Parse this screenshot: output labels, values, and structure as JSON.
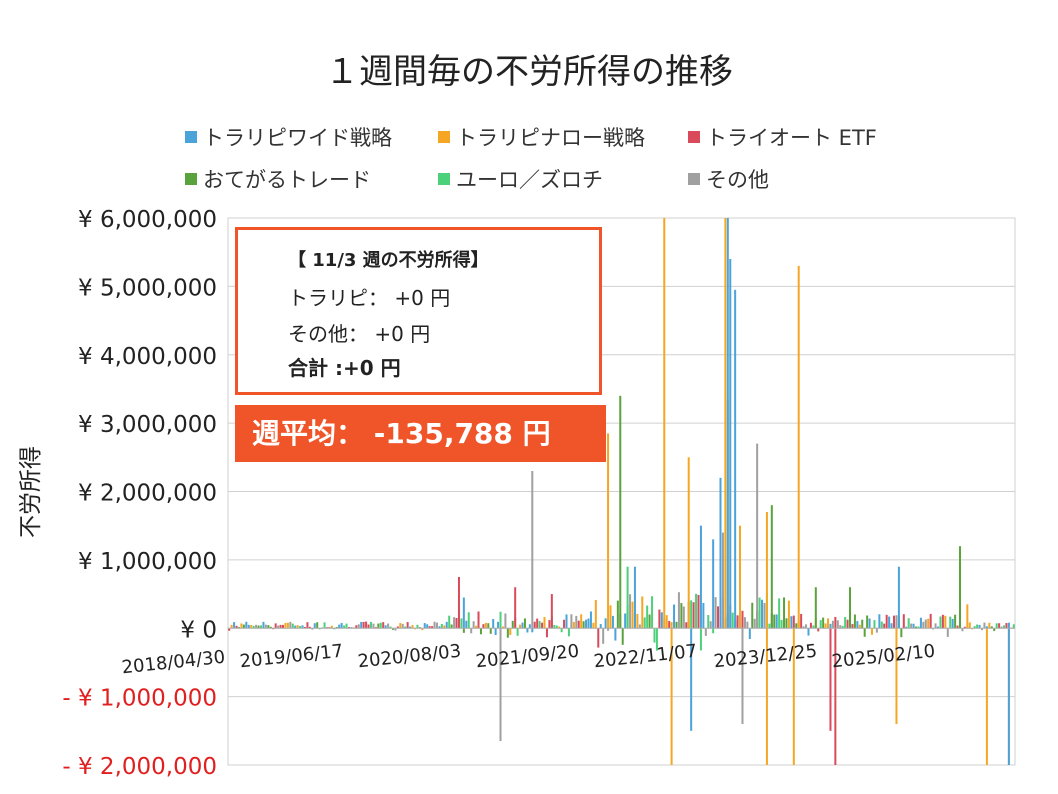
{
  "title": "１週間毎の不労所得の推移",
  "legend": [
    {
      "label": "トラリピワイド戦略",
      "color": "#4aa3d9"
    },
    {
      "label": "トラリピナロー戦略",
      "color": "#f5a623"
    },
    {
      "label": "トライオート ETF",
      "color": "#d94a5a"
    },
    {
      "label": "おてがるトレード",
      "color": "#5aa33c"
    },
    {
      "label": "ユーロ／ズロチ",
      "color": "#4cd17a"
    },
    {
      "label": "その他",
      "color": "#a0a0a0"
    }
  ],
  "info": {
    "header": "【 11/3 週の不労所得】",
    "torarip": "トラリピ：  +0 円",
    "other": "その他：  +0 円",
    "total": "合計 :+0 円",
    "average": "週平均：  -135,788 円"
  },
  "chart_data": {
    "type": "bar",
    "stacked": false,
    "ylabel": "不労所得",
    "ylim": [
      -2000000,
      6000000
    ],
    "yticks": [
      {
        "value": 6000000,
        "label": "¥ 6,000,000",
        "color": "#222222"
      },
      {
        "value": 5000000,
        "label": "¥ 5,000,000",
        "color": "#222222"
      },
      {
        "value": 4000000,
        "label": "¥ 4,000,000",
        "color": "#222222"
      },
      {
        "value": 3000000,
        "label": "¥ 3,000,000",
        "color": "#222222"
      },
      {
        "value": 2000000,
        "label": "¥ 2,000,000",
        "color": "#222222"
      },
      {
        "value": 1000000,
        "label": "¥ 1,000,000",
        "color": "#222222"
      },
      {
        "value": 0,
        "label": "¥ 0",
        "color": "#222222"
      },
      {
        "value": -1000000,
        "label": "- ¥ 1,000,000",
        "color": "#e02020"
      },
      {
        "value": -2000000,
        "label": "- ¥ 2,000,000",
        "color": "#e02020"
      }
    ],
    "xticks": [
      "2018/04/30",
      "2019/06/17",
      "2020/08/03",
      "2021/09/20",
      "2022/11/07",
      "2023/12/25",
      "2025/02/10"
    ],
    "grid": true,
    "notable_bars": [
      {
        "series": "トラリピナロー戦略",
        "week": 155,
        "value": 2850000
      },
      {
        "series": "トラリピナロー戦略",
        "week": 178,
        "value": 6000000
      },
      {
        "series": "トラリピナロー戦略",
        "week": 188,
        "value": 2500000
      },
      {
        "series": "トラリピナロー戦略",
        "week": 203,
        "value": 6000000
      },
      {
        "series": "トラリピナロー戦略",
        "week": 204,
        "value": 3350000
      },
      {
        "series": "トラリピナロー戦略",
        "week": 233,
        "value": 5300000
      },
      {
        "series": "トラリピナロー戦略",
        "week": 209,
        "value": 1500000
      },
      {
        "series": "トラリピナロー戦略",
        "week": 220,
        "value": 1700000
      },
      {
        "series": "トラリピナロー戦略",
        "week": 181,
        "value": -2000000
      },
      {
        "series": "トラリピナロー戦略",
        "week": 220,
        "value": -2000000
      },
      {
        "series": "トラリピナロー戦略",
        "week": 231,
        "value": -2000000
      },
      {
        "series": "トラリピナロー戦略",
        "week": 273,
        "value": -1400000
      },
      {
        "series": "トラリピナロー戦略",
        "week": 302,
        "value": 350000
      },
      {
        "series": "トラリピナロー戦略",
        "week": 310,
        "value": -2000000
      },
      {
        "series": "トラリピナロー戦略",
        "week": 319,
        "value": -2000000
      },
      {
        "series": "トラリピワイド戦略",
        "week": 204,
        "value": 6000000
      },
      {
        "series": "トラリピワイド戦略",
        "week": 207,
        "value": 4950000
      },
      {
        "series": "トラリピワイド戦略",
        "week": 205,
        "value": 5400000
      },
      {
        "series": "トラリピワイド戦略",
        "week": 201,
        "value": 2200000
      },
      {
        "series": "トラリピワイド戦略",
        "week": 198,
        "value": 1300000
      },
      {
        "series": "トラリピワイド戦略",
        "week": 193,
        "value": 1500000
      },
      {
        "series": "トラリピワイド戦略",
        "week": 189,
        "value": -1500000
      },
      {
        "series": "トラリピワイド戦略",
        "week": 274,
        "value": 900000
      },
      {
        "series": "トラリピワイド戦略",
        "week": 319,
        "value": -2000000
      },
      {
        "series": "トラリピワイド戦略",
        "week": 166,
        "value": 900000
      },
      {
        "series": "トラリピワイド戦略",
        "week": 96,
        "value": 450000
      },
      {
        "series": "おてがるトレード",
        "week": 160,
        "value": 3400000
      },
      {
        "series": "おてがるトレード",
        "week": 222,
        "value": 1800000
      },
      {
        "series": "おてがるトレード",
        "week": 299,
        "value": 1200000
      },
      {
        "series": "おてがるトレード",
        "week": 240,
        "value": 600000
      },
      {
        "series": "おてがるトレード",
        "week": 254,
        "value": 600000
      },
      {
        "series": "トライオート ETF",
        "week": 94,
        "value": 750000
      },
      {
        "series": "トライオート ETF",
        "week": 117,
        "value": 600000
      },
      {
        "series": "トライオート ETF",
        "week": 132,
        "value": 500000
      },
      {
        "series": "トライオート ETF",
        "week": 246,
        "value": -1500000
      },
      {
        "series": "トライオート ETF",
        "week": 248,
        "value": -2000000
      },
      {
        "series": "その他",
        "week": 124,
        "value": 2300000
      },
      {
        "series": "その他",
        "week": 216,
        "value": 2700000
      },
      {
        "series": "その他",
        "week": 202,
        "value": 1400000
      },
      {
        "series": "その他",
        "week": 210,
        "value": -1400000
      },
      {
        "series": "その他",
        "week": 111,
        "value": -1650000
      },
      {
        "series": "ユーロ／ズロチ",
        "week": 163,
        "value": 900000
      }
    ]
  }
}
